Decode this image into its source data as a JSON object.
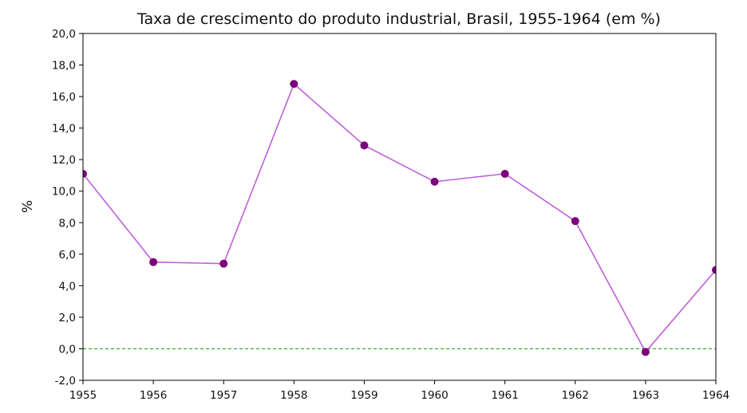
{
  "chart_data": {
    "type": "line",
    "title": "Taxa de crescimento do produto industrial, Brasil, 1955-1964 (em %)",
    "xlabel": "",
    "ylabel": "%",
    "x": [
      1955,
      1956,
      1957,
      1958,
      1959,
      1960,
      1961,
      1962,
      1963,
      1964
    ],
    "x_tick_labels": [
      "1955",
      "1956",
      "1957",
      "1958",
      "1959",
      "1960",
      "1961",
      "1962",
      "1963",
      "1964"
    ],
    "series": [
      {
        "values": [
          11.1,
          5.5,
          5.4,
          16.8,
          12.9,
          10.6,
          11.1,
          8.1,
          -0.2,
          5.0
        ]
      }
    ],
    "xlim": [
      1955,
      1964
    ],
    "ylim": [
      -2,
      20
    ],
    "y_ticks": [
      -2,
      0,
      2,
      4,
      6,
      8,
      10,
      12,
      14,
      16,
      18,
      20
    ],
    "y_tick_labels": [
      "-2,0",
      "0,0",
      "2,0",
      "4,0",
      "6,0",
      "8,0",
      "10,0",
      "12,0",
      "14,0",
      "16,0",
      "18,0",
      "20,0"
    ],
    "reference_line": {
      "y": 0,
      "style": "dashed",
      "color": "#2ca02c"
    },
    "grid": false,
    "legend": "none",
    "colors": {
      "line": "#c05fd8",
      "marker": "#7b007b"
    }
  }
}
